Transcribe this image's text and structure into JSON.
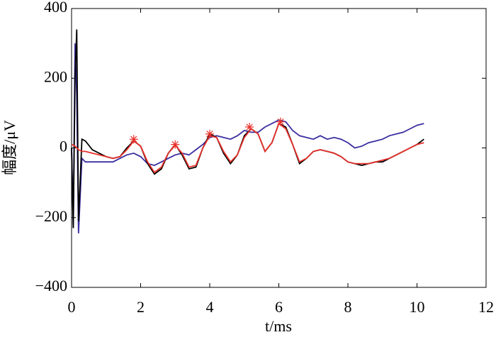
{
  "chart_data": {
    "type": "line",
    "xlabel": "t/ms",
    "ylabel": "幅度/μV",
    "xlim": [
      0,
      12
    ],
    "xticks": [
      0,
      2,
      4,
      6,
      8,
      10,
      12
    ],
    "ylim": [
      -400,
      400
    ],
    "yticks": [
      {
        "value": -400,
        "label": "−400"
      },
      {
        "value": -200,
        "label": "−200"
      },
      0,
      200,
      400
    ],
    "x": [
      0,
      0.05,
      0.1,
      0.15,
      0.2,
      0.3,
      0.4,
      0.6,
      0.8,
      1.0,
      1.2,
      1.4,
      1.6,
      1.8,
      2.0,
      2.2,
      2.4,
      2.6,
      2.8,
      3.0,
      3.2,
      3.4,
      3.6,
      3.8,
      4.0,
      4.2,
      4.4,
      4.6,
      4.8,
      5.0,
      5.2,
      5.4,
      5.6,
      5.8,
      6.0,
      6.2,
      6.4,
      6.6,
      6.8,
      7.0,
      7.2,
      7.4,
      7.6,
      7.8,
      8.0,
      8.2,
      8.4,
      8.6,
      8.8,
      9.0,
      9.2,
      9.4,
      9.6,
      9.8,
      10.0,
      10.2
    ],
    "series": [
      {
        "color": "#3a2ea0",
        "values": [
          0,
          -230,
          300,
          150,
          -245,
          -30,
          -40,
          -40,
          -40,
          -40,
          -40,
          -30,
          -20,
          -15,
          -25,
          -45,
          -50,
          -40,
          -30,
          -20,
          -15,
          -20,
          -5,
          10,
          30,
          35,
          30,
          25,
          35,
          50,
          45,
          45,
          60,
          70,
          80,
          75,
          50,
          35,
          30,
          25,
          35,
          25,
          30,
          25,
          15,
          0,
          5,
          15,
          20,
          25,
          35,
          40,
          45,
          55,
          65,
          70
        ]
      },
      {
        "color": "#000000",
        "values": [
          0,
          -230,
          200,
          340,
          -210,
          25,
          20,
          -5,
          -15,
          -25,
          -30,
          -25,
          0,
          20,
          5,
          -45,
          -75,
          -60,
          -15,
          10,
          -20,
          -60,
          -55,
          0,
          40,
          30,
          -15,
          -45,
          -20,
          35,
          55,
          40,
          -10,
          15,
          70,
          60,
          10,
          -45,
          -30,
          -10,
          -5,
          -10,
          -15,
          -25,
          -40,
          -45,
          -50,
          -45,
          -40,
          -40,
          -30,
          -20,
          -10,
          0,
          10,
          25
        ]
      },
      {
        "color": "#e8302a",
        "values": [
          10,
          8,
          5,
          0,
          -5,
          -10,
          -10,
          -15,
          -20,
          -25,
          -30,
          -25,
          -5,
          20,
          5,
          -40,
          -70,
          -55,
          -15,
          8,
          -15,
          -55,
          -50,
          0,
          35,
          30,
          -10,
          -40,
          -20,
          30,
          55,
          40,
          -10,
          15,
          70,
          55,
          10,
          -40,
          -30,
          -10,
          -5,
          -10,
          -15,
          -25,
          -40,
          -45,
          -45,
          -45,
          -40,
          -35,
          -30,
          -20,
          -10,
          0,
          10,
          15
        ]
      },
      {
        "type": "scatter",
        "marker": "*",
        "color": "#e8302a",
        "x": [
          1.8,
          3.0,
          4.0,
          5.15,
          6.05
        ],
        "values": [
          25,
          10,
          40,
          60,
          75
        ]
      }
    ]
  }
}
